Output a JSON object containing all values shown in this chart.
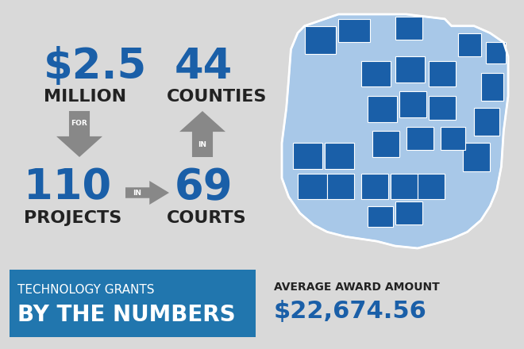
{
  "bg_color": "#d9d9d9",
  "blue_dark": "#1a5fa8",
  "blue_medium": "#1a7abf",
  "blue_light": "#a8c8e8",
  "gray_arrow": "#888888",
  "white": "#ffffff",
  "black": "#222222",
  "stat1_value": "$2.5",
  "stat1_sub": "MILLION",
  "stat1_label": "FOR",
  "stat2_value": "44",
  "stat2_sub": "COUNTIES",
  "stat2_label": "IN",
  "stat3_value": "110",
  "stat3_sub": "PROJECTS",
  "stat3_label": "IN",
  "stat4_value": "69",
  "stat4_sub": "COURTS",
  "footer_bg": "#2176ae",
  "footer_line1": "TECHNOLOGY GRANTS",
  "footer_line2": "BY THE NUMBERS",
  "avg_label": "AVERAGE AWARD AMOUNT",
  "avg_value": "$22,674.56",
  "fig_width": 6.6,
  "fig_height": 4.4,
  "dpi": 100
}
